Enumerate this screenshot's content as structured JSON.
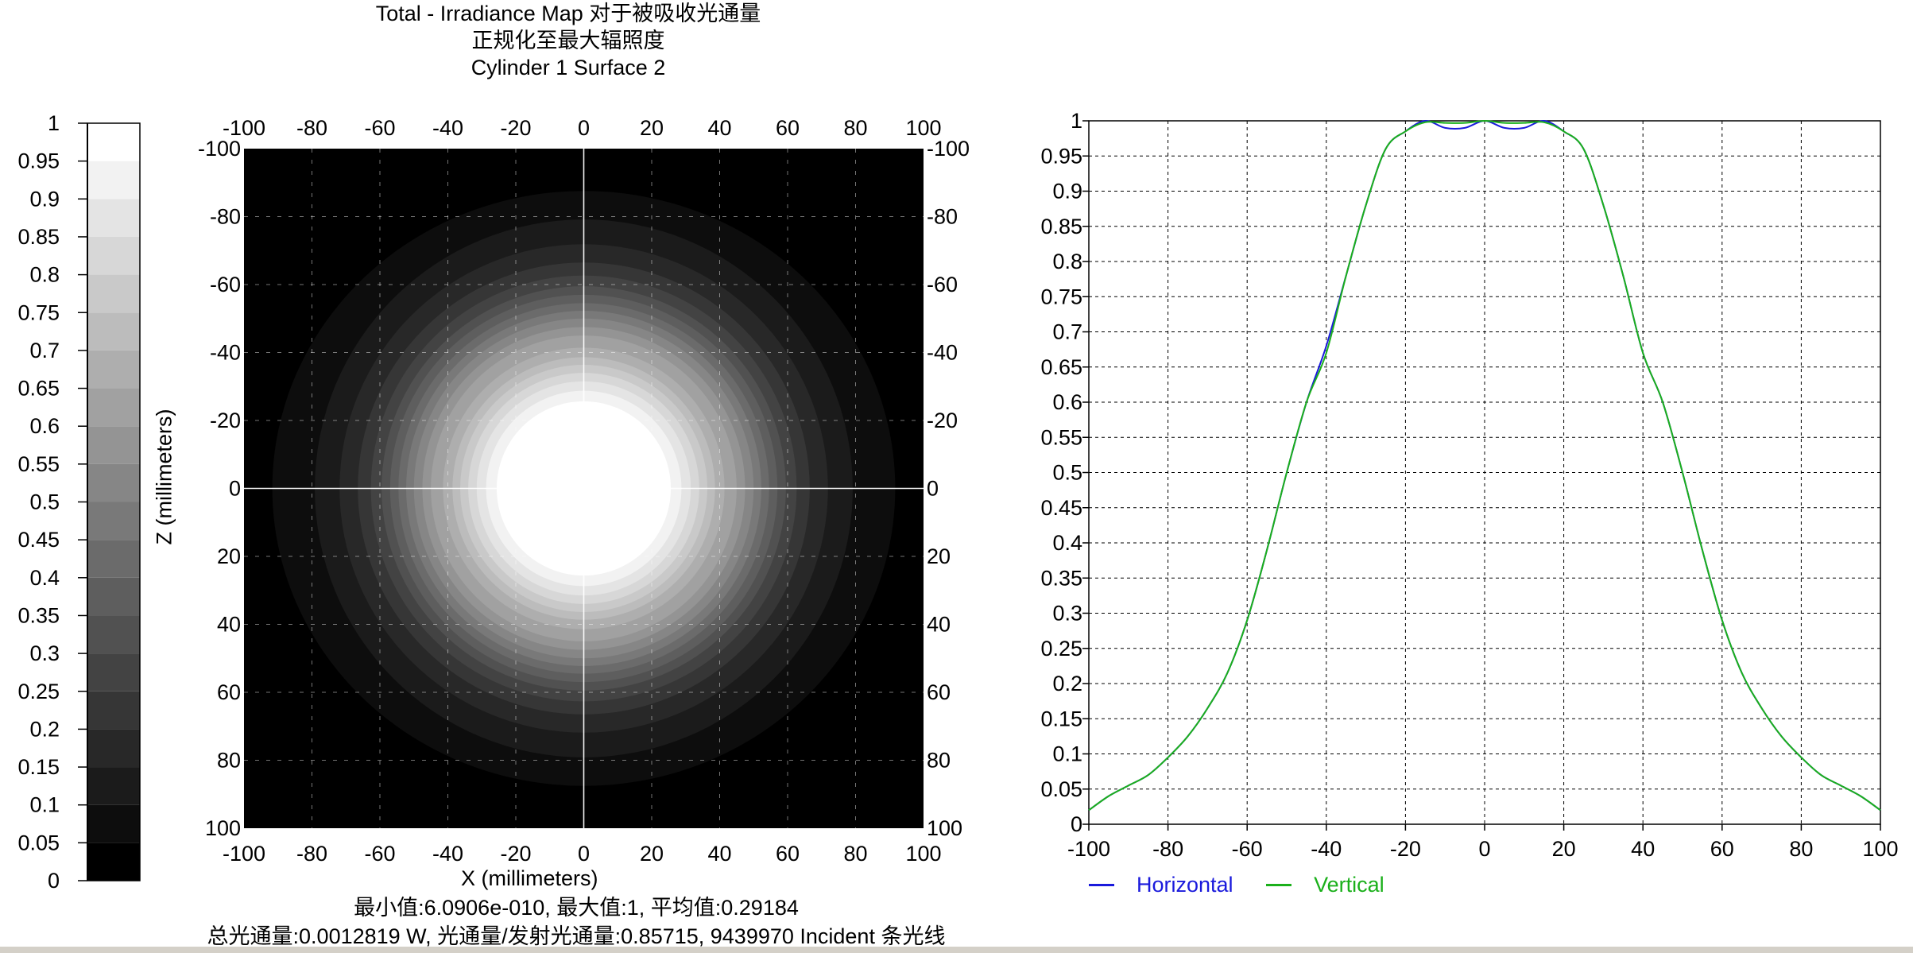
{
  "titles": {
    "line1": "Total - Irradiance Map 对于被吸收光通量",
    "line2": "正规化至最大辐照度",
    "line3": "Cylinder 1 Surface 2"
  },
  "stats": {
    "line1": "最小值:6.0906e-010, 最大值:1, 平均值:0.29184",
    "line2": "总光通量:0.0012819 W, 光通量/发射光通量:0.85715, 9439970 Incident 条光线"
  },
  "axes_labels": {
    "map_x": "X (millimeters)",
    "map_z": "Z (millimeters)"
  },
  "colors": {
    "horizontal": "#1a1adc",
    "vertical": "#1bb01b",
    "map_background": "#000000"
  },
  "chart_data": [
    {
      "type": "heatmap",
      "title": "Total - Irradiance Map 对于被吸收光通量",
      "xlabel": "X (millimeters)",
      "ylabel": "Z (millimeters)",
      "xlim": [
        -100,
        100
      ],
      "ylim": [
        -100,
        100
      ],
      "x_ticks": [
        "-100",
        "-80",
        "-60",
        "-40",
        "-20",
        "0",
        "20",
        "40",
        "60",
        "80",
        "100"
      ],
      "y_ticks": [
        "-100",
        "-80",
        "-60",
        "-40",
        "-20",
        "0",
        "20",
        "40",
        "60",
        "80",
        "100"
      ],
      "grid": true,
      "colorbar": {
        "range": [
          0,
          1
        ],
        "levels": 20,
        "ticks": [
          "1",
          "0.95",
          "0.9",
          "0.85",
          "0.8",
          "0.75",
          "0.7",
          "0.65",
          "0.6",
          "0.55",
          "0.5",
          "0.45",
          "0.4",
          "0.35",
          "0.3",
          "0.25",
          "0.2",
          "0.15",
          "0.1",
          "0.05",
          "0"
        ]
      },
      "profile_from": "cross-section line chart"
    },
    {
      "type": "line",
      "xlabel": "",
      "ylabel": "",
      "xlim": [
        -100,
        100
      ],
      "ylim": [
        0,
        1
      ],
      "grid": true,
      "x_ticks": [
        "-100",
        "-80",
        "-60",
        "-40",
        "-20",
        "0",
        "20",
        "40",
        "60",
        "80",
        "100"
      ],
      "y_ticks": [
        "1",
        "0.95",
        "0.9",
        "0.85",
        "0.8",
        "0.75",
        "0.7",
        "0.65",
        "0.6",
        "0.55",
        "0.5",
        "0.45",
        "0.4",
        "0.35",
        "0.3",
        "0.25",
        "0.2",
        "0.15",
        "0.1",
        "0.05",
        "0"
      ],
      "legend_position": "bottom-left",
      "x": [
        -100,
        -95,
        -90,
        -85,
        -80,
        -75,
        -70,
        -65,
        -60,
        -55,
        -50,
        -45,
        -40,
        -35,
        -30,
        -25,
        -20,
        -15,
        -10,
        -5,
        0,
        5,
        10,
        15,
        20,
        25,
        30,
        35,
        40,
        45,
        50,
        55,
        60,
        65,
        70,
        75,
        80,
        85,
        90,
        95,
        100
      ],
      "series": [
        {
          "name": "Horizontal",
          "values": [
            0.02,
            0.04,
            0.055,
            0.07,
            0.095,
            0.125,
            0.165,
            0.215,
            0.29,
            0.39,
            0.5,
            0.6,
            0.68,
            0.78,
            0.88,
            0.96,
            0.985,
            1.0,
            0.99,
            0.99,
            1.0,
            0.99,
            0.99,
            1.0,
            0.985,
            0.96,
            0.88,
            0.78,
            0.67,
            0.6,
            0.5,
            0.39,
            0.29,
            0.215,
            0.165,
            0.125,
            0.095,
            0.07,
            0.055,
            0.04,
            0.02
          ]
        },
        {
          "name": "Vertical",
          "values": [
            0.02,
            0.04,
            0.055,
            0.07,
            0.095,
            0.125,
            0.165,
            0.215,
            0.29,
            0.39,
            0.5,
            0.6,
            0.67,
            0.78,
            0.88,
            0.96,
            0.985,
            0.998,
            0.997,
            0.997,
            1.0,
            0.997,
            0.997,
            0.998,
            0.985,
            0.96,
            0.88,
            0.78,
            0.67,
            0.6,
            0.5,
            0.39,
            0.29,
            0.215,
            0.165,
            0.125,
            0.095,
            0.07,
            0.055,
            0.04,
            0.02
          ]
        }
      ]
    }
  ]
}
